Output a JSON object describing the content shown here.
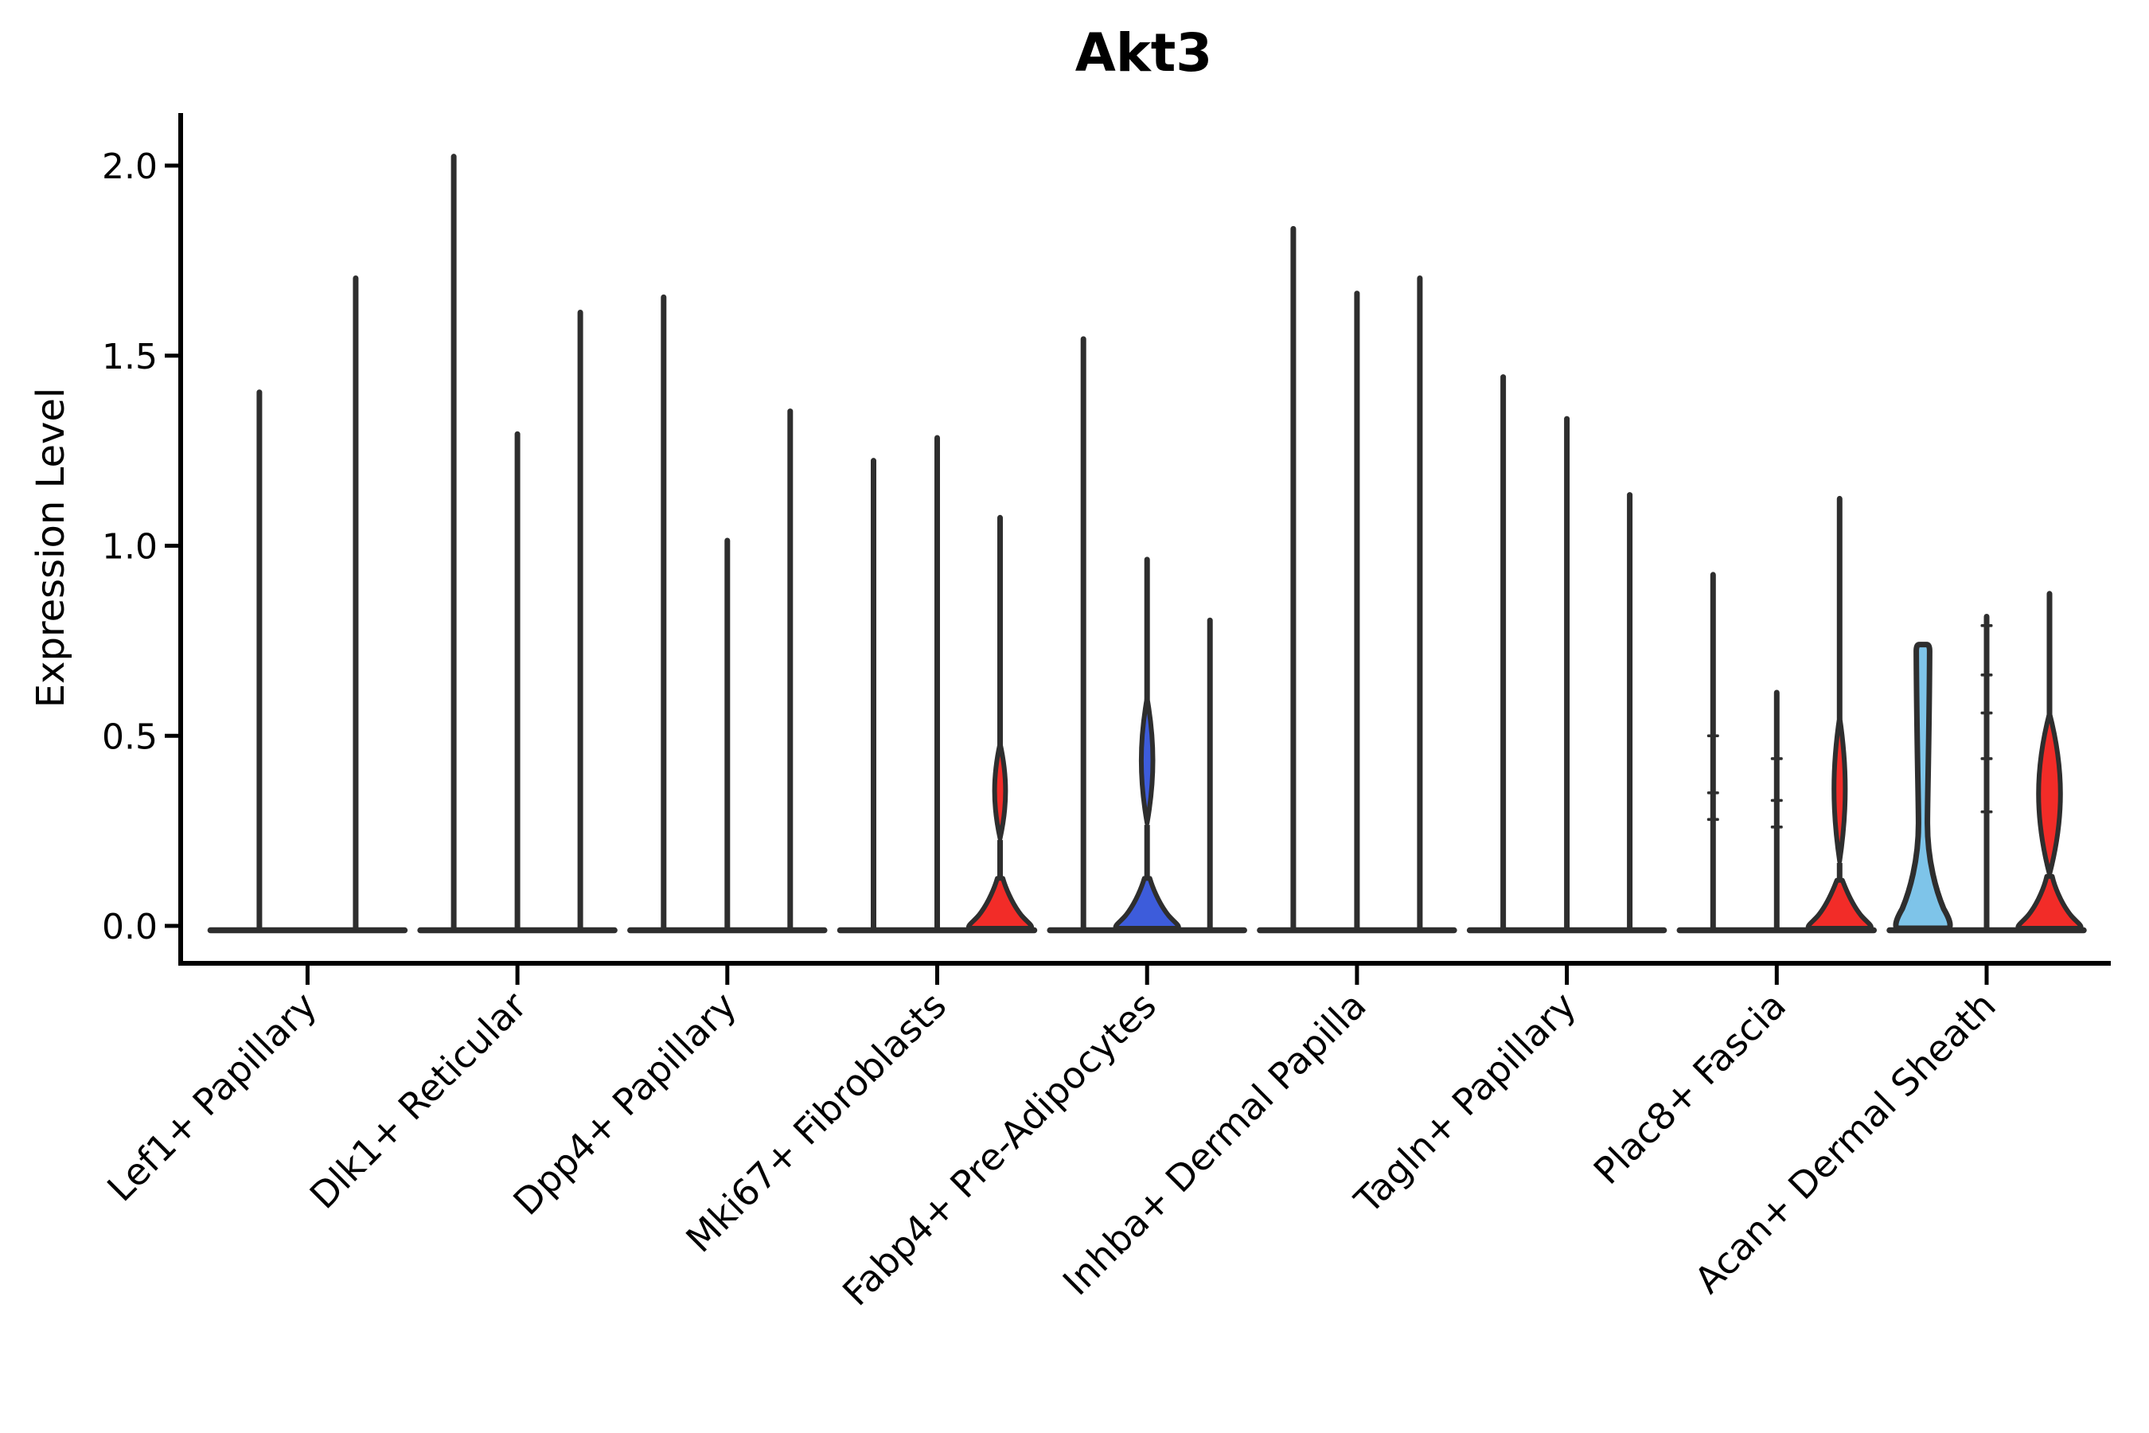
{
  "chart_data": {
    "type": "violin",
    "title": "Akt3",
    "ylabel": "Expression Level",
    "xlabel": "",
    "ylim": [
      0,
      2.14
    ],
    "yticks": [
      0.0,
      0.5,
      1.0,
      1.5,
      2.0
    ],
    "ytick_labels": [
      "0.0",
      "0.5",
      "1.0",
      "1.5",
      "2.0"
    ],
    "grid": false,
    "legend": "none",
    "x_label_rotation_deg": 45,
    "categories": [
      "Lef1+ Papillary",
      "Dlk1+ Reticular",
      "Dpp4+ Papillary",
      "Mki67+ Fibroblasts",
      "Fabp4+ Pre-Adipocytes",
      "Inhba+ Dermal Papilla",
      "Tagln+ Papillary",
      "Plac8+ Fascia",
      "Acan+ Dermal Sheath"
    ],
    "colors": {
      "red": "#F22C28",
      "blue": "#3D5CDB",
      "skyblue": "#7EC4E9",
      "ink": "#2E2E2E",
      "axis": "#000000",
      "background": "#FFFFFF"
    },
    "groups": [
      {
        "label": "Lef1+ Papillary",
        "violins": [
          {
            "shape": "spike",
            "fill": "none",
            "max": 1.41
          },
          {
            "shape": "spike",
            "fill": "none",
            "max": 1.71
          }
        ]
      },
      {
        "label": "Dlk1+ Reticular",
        "violins": [
          {
            "shape": "spike",
            "fill": "none",
            "max": 2.03
          },
          {
            "shape": "spike",
            "fill": "none",
            "max": 1.3
          },
          {
            "shape": "spike",
            "fill": "none",
            "max": 1.62
          }
        ]
      },
      {
        "label": "Dpp4+ Papillary",
        "violins": [
          {
            "shape": "spike",
            "fill": "none",
            "max": 1.66
          },
          {
            "shape": "spike",
            "fill": "none",
            "max": 1.02
          },
          {
            "shape": "spike",
            "fill": "none",
            "max": 1.36
          }
        ]
      },
      {
        "label": "Mki67+ Fibroblasts",
        "violins": [
          {
            "shape": "spike",
            "fill": "none",
            "max": 1.23
          },
          {
            "shape": "spike",
            "fill": "none",
            "max": 1.29
          },
          {
            "shape": "lens",
            "fill": "red",
            "max": 1.08,
            "lens": {
              "top": 0.48,
              "peak": 0.36,
              "bottom": 0.23,
              "w": 0.17
            },
            "flare": 0.125
          }
        ]
      },
      {
        "label": "Fabp4+ Pre-Adipocytes",
        "violins": [
          {
            "shape": "spike",
            "fill": "none",
            "max": 1.55
          },
          {
            "shape": "lens",
            "fill": "blue",
            "max": 0.97,
            "lens": {
              "top": 0.6,
              "peak": 0.44,
              "bottom": 0.27,
              "w": 0.18
            },
            "flare": 0.125
          },
          {
            "shape": "spike",
            "fill": "none",
            "max": 0.81
          }
        ]
      },
      {
        "label": "Inhba+ Dermal Papilla",
        "violins": [
          {
            "shape": "spike",
            "fill": "none",
            "max": 1.84
          },
          {
            "shape": "spike",
            "fill": "none",
            "max": 1.67
          },
          {
            "shape": "spike",
            "fill": "none",
            "max": 1.71
          }
        ]
      },
      {
        "label": "Tagln+ Papillary",
        "violins": [
          {
            "shape": "spike",
            "fill": "none",
            "max": 1.45
          },
          {
            "shape": "spike",
            "fill": "none",
            "max": 1.34
          },
          {
            "shape": "spike",
            "fill": "none",
            "max": 1.14
          }
        ]
      },
      {
        "label": "Plac8+ Fascia",
        "violins": [
          {
            "shape": "spike",
            "fill": "none",
            "max": 0.93,
            "nubs": [
              0.5,
              0.35,
              0.28
            ]
          },
          {
            "shape": "spike",
            "fill": "none",
            "max": 0.62,
            "nubs": [
              0.44,
              0.33,
              0.26
            ]
          },
          {
            "shape": "lens",
            "fill": "red",
            "max": 1.13,
            "lens": {
              "top": 0.55,
              "peak": 0.36,
              "bottom": 0.17,
              "w": 0.175
            },
            "flare": 0.12
          }
        ]
      },
      {
        "label": "Acan+ Dermal Sheath",
        "violins": [
          {
            "shape": "column",
            "fill": "skyblue",
            "max": 0.74,
            "col": {
              "topw": 0.21,
              "waist": 0.27,
              "waistw": 0.14,
              "basew": 0.93
            }
          },
          {
            "shape": "spike",
            "fill": "none",
            "max": 0.82,
            "nubs": [
              0.79,
              0.66,
              0.56,
              0.44,
              0.3
            ]
          },
          {
            "shape": "lens",
            "fill": "red",
            "max": 0.88,
            "lens": {
              "top": 0.56,
              "peak": 0.33,
              "bottom": 0.135,
              "w": 0.34
            },
            "flare": 0.13
          }
        ]
      }
    ]
  }
}
